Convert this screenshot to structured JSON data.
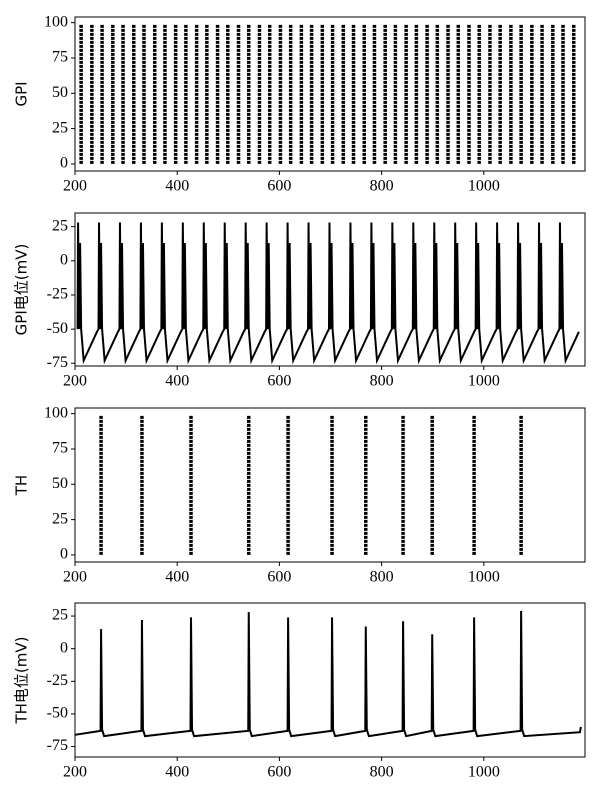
{
  "chart_data": [
    {
      "type": "raster",
      "y_label": "GPI",
      "x": [
        212,
        233,
        253,
        274,
        294,
        315,
        335,
        356,
        376,
        397,
        417,
        438,
        458,
        479,
        499,
        520,
        540,
        561,
        581,
        602,
        622,
        643,
        663,
        684,
        704,
        725,
        745,
        766,
        786,
        807,
        827,
        848,
        868,
        889,
        909,
        930,
        950,
        971,
        991,
        1012,
        1032,
        1053,
        1073,
        1094,
        1114,
        1135,
        1155,
        1176
      ],
      "spike_neurons": [
        0,
        99
      ],
      "color": "#000000",
      "xlim": [
        200,
        1198
      ],
      "xticks": [
        200,
        400,
        600,
        800,
        1000
      ],
      "ylim": [
        -5,
        104
      ],
      "yticks": [
        0,
        25,
        50,
        75,
        100
      ]
    },
    {
      "type": "line",
      "y_label": "GPI电位(mV)",
      "color": "#000000",
      "x": [
        205,
        206,
        208,
        210,
        212,
        217,
        243,
        246,
        247,
        249,
        251,
        253,
        258,
        284,
        287,
        288,
        290,
        292,
        294,
        299,
        325,
        328,
        329,
        331,
        333,
        335,
        340,
        366,
        369,
        370,
        372,
        374,
        376,
        381,
        407,
        410,
        411,
        413,
        415,
        417,
        422,
        448,
        451,
        452,
        454,
        456,
        458,
        463,
        489,
        492,
        493,
        495,
        497,
        499,
        504,
        530,
        533,
        534,
        536,
        538,
        540,
        545,
        571,
        574,
        575,
        577,
        579,
        581,
        586,
        612,
        615,
        616,
        618,
        620,
        622,
        627,
        653,
        656,
        657,
        659,
        661,
        663,
        668,
        694,
        697,
        698,
        700,
        702,
        704,
        709,
        735,
        738,
        739,
        741,
        743,
        745,
        750,
        776,
        779,
        780,
        782,
        784,
        786,
        791,
        817,
        820,
        821,
        823,
        825,
        827,
        832,
        858,
        861,
        862,
        864,
        866,
        868,
        873,
        899,
        902,
        903,
        905,
        907,
        909,
        914,
        940,
        943,
        944,
        946,
        948,
        950,
        955,
        981,
        984,
        985,
        987,
        989,
        991,
        996,
        1022,
        1025,
        1026,
        1028,
        1030,
        1032,
        1037,
        1063,
        1066,
        1067,
        1069,
        1071,
        1073,
        1078,
        1104,
        1107,
        1108,
        1110,
        1112,
        1114,
        1119,
        1145,
        1148,
        1149,
        1151,
        1153,
        1155,
        1160,
        1186
      ],
      "y": [
        -50,
        28,
        -50,
        13,
        -50,
        -73,
        -52,
        -50,
        28,
        -50,
        13,
        -50,
        -73,
        -52,
        -50,
        28,
        -50,
        13,
        -50,
        -73,
        -52,
        -50,
        28,
        -50,
        13,
        -50,
        -73,
        -52,
        -50,
        28,
        -50,
        13,
        -50,
        -73,
        -52,
        -50,
        28,
        -50,
        13,
        -50,
        -73,
        -52,
        -50,
        28,
        -50,
        13,
        -50,
        -73,
        -52,
        -50,
        28,
        -50,
        13,
        -50,
        -73,
        -52,
        -50,
        28,
        -50,
        13,
        -50,
        -73,
        -52,
        -50,
        28,
        -50,
        13,
        -50,
        -73,
        -52,
        -50,
        28,
        -50,
        13,
        -50,
        -73,
        -52,
        -50,
        28,
        -50,
        13,
        -50,
        -73,
        -52,
        -50,
        28,
        -50,
        13,
        -50,
        -73,
        -52,
        -50,
        28,
        -50,
        13,
        -50,
        -73,
        -52,
        -50,
        28,
        -50,
        13,
        -50,
        -73,
        -52,
        -50,
        28,
        -50,
        13,
        -50,
        -73,
        -52,
        -50,
        28,
        -50,
        13,
        -50,
        -73,
        -52,
        -50,
        28,
        -50,
        13,
        -50,
        -73,
        -52,
        -50,
        28,
        -50,
        13,
        -50,
        -73,
        -52,
        -50,
        28,
        -50,
        13,
        -50,
        -73,
        -52,
        -50,
        28,
        -50,
        13,
        -50,
        -73,
        -52,
        -50,
        28,
        -50,
        13,
        -50,
        -73,
        -52,
        -50,
        28,
        -50,
        13,
        -50,
        -73,
        -52,
        -50,
        28,
        -50,
        13,
        -50,
        -73,
        -52
      ],
      "xlim": [
        200,
        1198
      ],
      "xticks": [
        200,
        400,
        600,
        800,
        1000
      ],
      "ylim": [
        -77,
        35
      ],
      "yticks": [
        -75,
        -50,
        -25,
        0,
        25
      ]
    },
    {
      "type": "raster",
      "y_label": "TH",
      "x": [
        251,
        331,
        427,
        540,
        617,
        703,
        769,
        842,
        899,
        981,
        1073
      ],
      "spike_neurons": [
        0,
        99
      ],
      "color": "#000000",
      "xlim": [
        200,
        1198
      ],
      "xticks": [
        200,
        400,
        600,
        800,
        1000
      ],
      "ylim": [
        -5,
        104
      ],
      "yticks": [
        0,
        25,
        50,
        75,
        100
      ]
    },
    {
      "type": "line",
      "y_label": "TH电位(mV)",
      "color": "#000000",
      "x": [
        200,
        250,
        251,
        253,
        257,
        330,
        331,
        333,
        337,
        426,
        427,
        429,
        433,
        539,
        540,
        542,
        546,
        616,
        617,
        619,
        623,
        702,
        703,
        705,
        709,
        768,
        769,
        771,
        775,
        841,
        842,
        844,
        848,
        898,
        899,
        901,
        905,
        980,
        981,
        983,
        987,
        1072,
        1073,
        1075,
        1079,
        1188,
        1190
      ],
      "y": [
        -66,
        -63,
        15,
        -62,
        -67,
        -63,
        22,
        -62,
        -67,
        -63,
        24,
        -62,
        -67,
        -63,
        28,
        -62,
        -67,
        -63,
        24,
        -62,
        -67,
        -63,
        24,
        -62,
        -67,
        -63,
        17,
        -62,
        -67,
        -63,
        21,
        -62,
        -67,
        -63,
        11,
        -62,
        -67,
        -63,
        24,
        -62,
        -67,
        -63,
        29,
        -62,
        -67,
        -64,
        -60
      ],
      "xlim": [
        200,
        1198
      ],
      "xticks": [
        200,
        400,
        600,
        800,
        1000
      ],
      "ylim": [
        -83,
        35
      ],
      "yticks": [
        -75,
        -50,
        -25,
        0,
        25
      ]
    }
  ]
}
